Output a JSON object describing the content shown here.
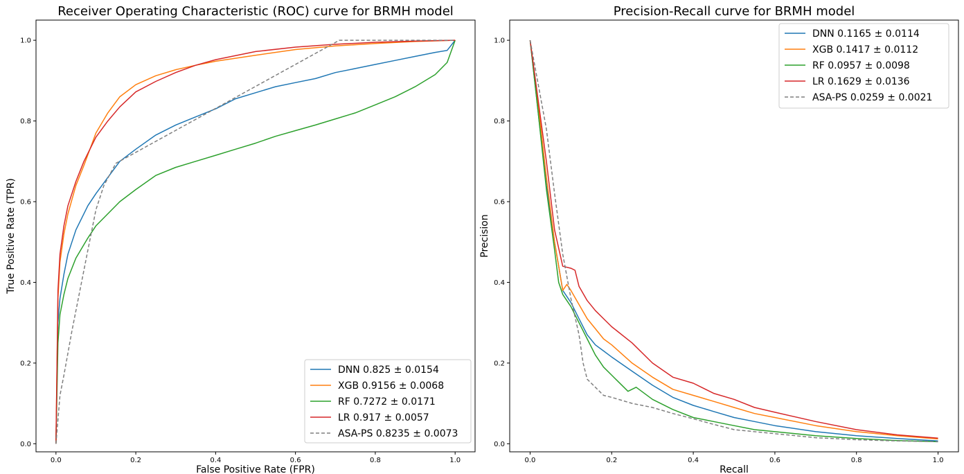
{
  "chart_data": [
    {
      "type": "line",
      "title": "Receiver Operating Characteristic (ROC) curve for BRMH model",
      "xlabel": "False Positive Rate (FPR)",
      "ylabel": "True Positive Rate (TPR)",
      "xlim": [
        -0.05,
        1.05
      ],
      "ylim": [
        -0.02,
        1.05
      ],
      "xticks": [
        "0.0",
        "0.2",
        "0.4",
        "0.6",
        "0.8",
        "1.0"
      ],
      "yticks": [
        "0.0",
        "0.2",
        "0.4",
        "0.6",
        "0.8",
        "1.0"
      ],
      "legend_position": "lower-right",
      "grid": false,
      "series": [
        {
          "name": "DNN 0.825 ± 0.0154",
          "color": "#1f77b4",
          "dash": "solid",
          "x": [
            0,
            0.005,
            0.01,
            0.02,
            0.03,
            0.05,
            0.08,
            0.1,
            0.13,
            0.16,
            0.2,
            0.25,
            0.3,
            0.35,
            0.4,
            0.45,
            0.5,
            0.55,
            0.6,
            0.65,
            0.7,
            0.75,
            0.8,
            0.85,
            0.9,
            0.95,
            0.98,
            1.0
          ],
          "y": [
            0,
            0.3,
            0.36,
            0.42,
            0.47,
            0.53,
            0.59,
            0.62,
            0.66,
            0.7,
            0.73,
            0.765,
            0.79,
            0.81,
            0.83,
            0.855,
            0.87,
            0.885,
            0.895,
            0.905,
            0.92,
            0.93,
            0.94,
            0.95,
            0.96,
            0.97,
            0.975,
            1.0
          ]
        },
        {
          "name": "XGB 0.9156 ± 0.0068",
          "color": "#ff7f0e",
          "dash": "solid",
          "x": [
            0,
            0.005,
            0.01,
            0.02,
            0.03,
            0.05,
            0.07,
            0.1,
            0.13,
            0.16,
            0.2,
            0.25,
            0.3,
            0.35,
            0.4,
            0.5,
            0.6,
            0.7,
            0.8,
            0.9,
            1.0
          ],
          "y": [
            0,
            0.36,
            0.45,
            0.52,
            0.57,
            0.64,
            0.69,
            0.77,
            0.82,
            0.86,
            0.89,
            0.912,
            0.927,
            0.938,
            0.948,
            0.963,
            0.977,
            0.986,
            0.992,
            0.997,
            1.0
          ]
        },
        {
          "name": "RF 0.7272 ± 0.0171",
          "color": "#2ca02c",
          "dash": "solid",
          "x": [
            0,
            0.005,
            0.01,
            0.02,
            0.03,
            0.05,
            0.08,
            0.1,
            0.13,
            0.16,
            0.2,
            0.25,
            0.3,
            0.35,
            0.4,
            0.45,
            0.5,
            0.55,
            0.6,
            0.65,
            0.7,
            0.75,
            0.8,
            0.85,
            0.9,
            0.95,
            0.98,
            1.0
          ],
          "y": [
            0,
            0.25,
            0.32,
            0.37,
            0.41,
            0.46,
            0.51,
            0.54,
            0.57,
            0.6,
            0.63,
            0.665,
            0.685,
            0.7,
            0.715,
            0.73,
            0.745,
            0.762,
            0.776,
            0.79,
            0.805,
            0.82,
            0.84,
            0.86,
            0.885,
            0.915,
            0.945,
            1.0
          ]
        },
        {
          "name": "LR 0.917 ± 0.0057",
          "color": "#d62728",
          "dash": "solid",
          "x": [
            0,
            0.005,
            0.01,
            0.02,
            0.03,
            0.05,
            0.07,
            0.1,
            0.13,
            0.16,
            0.2,
            0.25,
            0.3,
            0.35,
            0.4,
            0.5,
            0.6,
            0.7,
            0.8,
            0.9,
            1.0
          ],
          "y": [
            0,
            0.38,
            0.47,
            0.54,
            0.59,
            0.65,
            0.7,
            0.76,
            0.8,
            0.835,
            0.872,
            0.898,
            0.92,
            0.938,
            0.952,
            0.972,
            0.983,
            0.99,
            0.995,
            0.998,
            1.0
          ]
        },
        {
          "name": "ASA-PS 0.8235 ± 0.0073",
          "color": "#7f7f7f",
          "dash": "dashed",
          "x": [
            0,
            0.01,
            0.02,
            0.04,
            0.06,
            0.08,
            0.1,
            0.12,
            0.15,
            0.71,
            1.0
          ],
          "y": [
            0,
            0.12,
            0.17,
            0.28,
            0.38,
            0.48,
            0.58,
            0.64,
            0.695,
            1.0,
            1.0
          ]
        }
      ]
    },
    {
      "type": "line",
      "title": "Precision-Recall curve for BRMH model",
      "xlabel": "Recall",
      "ylabel": "Precision",
      "xlim": [
        -0.05,
        1.05
      ],
      "ylim": [
        -0.02,
        1.05
      ],
      "xticks": [
        "0.0",
        "0.2",
        "0.4",
        "0.6",
        "0.8",
        "1.0"
      ],
      "yticks": [
        "0.0",
        "0.2",
        "0.4",
        "0.6",
        "0.8",
        "1.0"
      ],
      "legend_position": "upper-right",
      "grid": false,
      "series": [
        {
          "name": "DNN 0.1165 ± 0.0114",
          "color": "#1f77b4",
          "dash": "solid",
          "x": [
            0,
            0.02,
            0.04,
            0.06,
            0.08,
            0.1,
            0.12,
            0.14,
            0.16,
            0.18,
            0.2,
            0.25,
            0.3,
            0.35,
            0.4,
            0.45,
            0.5,
            0.55,
            0.6,
            0.7,
            0.8,
            0.9,
            1.0
          ],
          "y": [
            1.0,
            0.82,
            0.64,
            0.5,
            0.38,
            0.35,
            0.31,
            0.27,
            0.245,
            0.23,
            0.215,
            0.18,
            0.145,
            0.115,
            0.095,
            0.08,
            0.065,
            0.055,
            0.045,
            0.03,
            0.02,
            0.013,
            0.007
          ]
        },
        {
          "name": "XGB 0.1417 ± 0.0112",
          "color": "#ff7f0e",
          "dash": "solid",
          "x": [
            0,
            0.02,
            0.04,
            0.06,
            0.08,
            0.09,
            0.1,
            0.12,
            0.14,
            0.16,
            0.18,
            0.2,
            0.25,
            0.3,
            0.35,
            0.4,
            0.45,
            0.5,
            0.55,
            0.6,
            0.7,
            0.8,
            0.9,
            1.0
          ],
          "y": [
            1.0,
            0.84,
            0.66,
            0.5,
            0.38,
            0.395,
            0.38,
            0.345,
            0.31,
            0.285,
            0.26,
            0.245,
            0.2,
            0.165,
            0.135,
            0.12,
            0.105,
            0.09,
            0.075,
            0.065,
            0.045,
            0.03,
            0.02,
            0.012
          ]
        },
        {
          "name": "RF 0.0957 ± 0.0098",
          "color": "#2ca02c",
          "dash": "solid",
          "x": [
            0,
            0.02,
            0.04,
            0.06,
            0.07,
            0.08,
            0.1,
            0.12,
            0.14,
            0.16,
            0.18,
            0.2,
            0.23,
            0.24,
            0.26,
            0.3,
            0.35,
            0.4,
            0.45,
            0.5,
            0.55,
            0.6,
            0.7,
            0.8,
            0.9,
            1.0
          ],
          "y": [
            1.0,
            0.82,
            0.63,
            0.48,
            0.4,
            0.37,
            0.34,
            0.3,
            0.26,
            0.22,
            0.19,
            0.17,
            0.14,
            0.13,
            0.14,
            0.11,
            0.085,
            0.065,
            0.055,
            0.045,
            0.035,
            0.03,
            0.02,
            0.013,
            0.008,
            0.005
          ]
        },
        {
          "name": "LR 0.1629 ± 0.0136",
          "color": "#d62728",
          "dash": "solid",
          "x": [
            0,
            0.02,
            0.04,
            0.06,
            0.08,
            0.1,
            0.11,
            0.12,
            0.14,
            0.16,
            0.18,
            0.2,
            0.25,
            0.3,
            0.35,
            0.4,
            0.45,
            0.5,
            0.55,
            0.6,
            0.7,
            0.8,
            0.9,
            1.0
          ],
          "y": [
            1.0,
            0.85,
            0.7,
            0.53,
            0.44,
            0.435,
            0.43,
            0.39,
            0.355,
            0.33,
            0.31,
            0.29,
            0.25,
            0.2,
            0.165,
            0.15,
            0.125,
            0.11,
            0.09,
            0.078,
            0.055,
            0.035,
            0.022,
            0.014
          ]
        },
        {
          "name": "ASA-PS 0.0259 ± 0.0021",
          "color": "#7f7f7f",
          "dash": "dashed",
          "x": [
            0,
            0.04,
            0.06,
            0.08,
            0.1,
            0.12,
            0.13,
            0.14,
            0.16,
            0.18,
            0.2,
            0.25,
            0.3,
            0.35,
            0.4,
            0.45,
            0.5,
            0.6,
            0.7,
            0.8,
            0.9,
            1.0
          ],
          "y": [
            1.0,
            0.78,
            0.62,
            0.47,
            0.36,
            0.27,
            0.2,
            0.16,
            0.14,
            0.12,
            0.115,
            0.1,
            0.09,
            0.075,
            0.062,
            0.048,
            0.035,
            0.025,
            0.015,
            0.01,
            0.007,
            0.005
          ]
        }
      ]
    }
  ]
}
